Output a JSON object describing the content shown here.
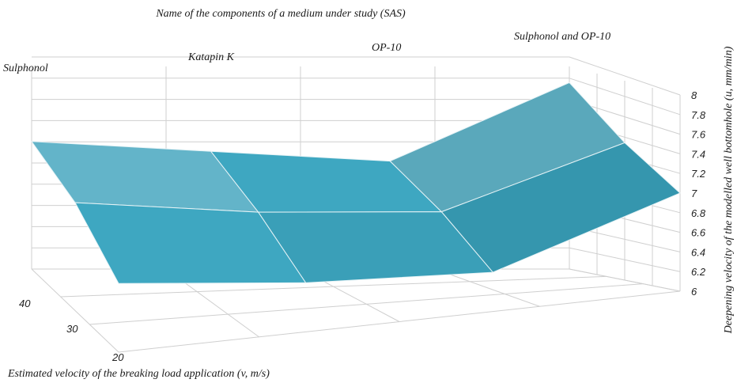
{
  "chart_data": {
    "type": "surface",
    "title": "Name of the components of a medium under study (SAS)",
    "xlabel": "Estimated velocity of the breaking load application (v, m/s)",
    "zlabel": "Deepening velocity of the modelled well bottomhole (u, mm/min)",
    "z_ticks": [
      "8",
      "7.8",
      "7.6",
      "7.4",
      "7.2",
      "7",
      "6.8",
      "6.6",
      "6.4",
      "6.2",
      "6"
    ],
    "zlim": [
      6,
      8
    ],
    "velocity_ticks": [
      "40",
      "30",
      "20"
    ],
    "components": [
      "Sulphonol",
      "Katapin K",
      "OP-10",
      "Sulphonol and OP-10"
    ],
    "velocities": [
      40,
      30,
      20
    ],
    "values": [
      [
        7.3,
        7.1,
        6.7
      ],
      [
        7.2,
        6.9,
        6.5
      ],
      [
        7.1,
        6.8,
        6.4
      ],
      [
        7.9,
        7.4,
        7.0
      ]
    ],
    "colors": {
      "surface": "#3aa6c2",
      "grid": "#cfcfcf"
    }
  }
}
